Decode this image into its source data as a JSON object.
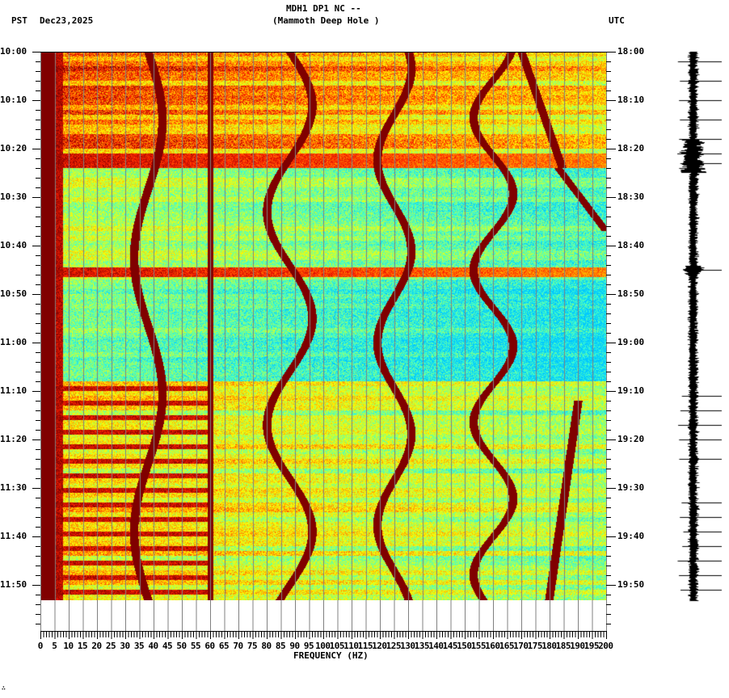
{
  "header": {
    "station_line": "MDH1 DP1 NC --",
    "site_line": "(Mammoth Deep Hole )",
    "left_timezone": "PST",
    "date": "Dec23,2025",
    "right_timezone": "UTC"
  },
  "footer": {
    "mark": "∴"
  },
  "chart_data": {
    "type": "heatmap",
    "title": "MDH1 DP1 NC -- (Mammoth Deep Hole ) spectrogram",
    "xlabel": "FREQUENCY (HZ)",
    "ylabel_left": "PST",
    "ylabel_right": "UTC",
    "xlim": [
      0,
      200
    ],
    "x_ticks": [
      0,
      5,
      10,
      15,
      20,
      25,
      30,
      35,
      40,
      45,
      50,
      55,
      60,
      65,
      70,
      75,
      80,
      85,
      90,
      95,
      100,
      105,
      110,
      115,
      120,
      125,
      130,
      135,
      140,
      145,
      150,
      155,
      160,
      165,
      170,
      175,
      180,
      185,
      190,
      195,
      200
    ],
    "y_ticks_left": [
      "10:00",
      "10:10",
      "10:20",
      "10:30",
      "10:40",
      "10:50",
      "11:00",
      "11:10",
      "11:20",
      "11:30",
      "11:40",
      "11:50"
    ],
    "y_ticks_right": [
      "18:00",
      "18:10",
      "18:20",
      "18:30",
      "18:40",
      "18:50",
      "19:00",
      "19:10",
      "19:20",
      "19:30",
      "19:40",
      "19:50"
    ],
    "time_range_pst": [
      "10:00",
      "11:53"
    ],
    "grid": "vertical lines every 5 Hz",
    "colormap": [
      "#00c8ff",
      "#40ffd0",
      "#a0ff60",
      "#ffff00",
      "#ffa000",
      "#ff2000",
      "#800000"
    ],
    "features": [
      {
        "name": "low-frequency noise band",
        "freq_hz": [
          0,
          5
        ],
        "intensity": "saturated"
      },
      {
        "name": "60 Hz power line",
        "freq_hz": 60,
        "intensity": "saturated"
      },
      {
        "name": "broadband event",
        "time_pst": "10:21-10:24",
        "freq_hz": [
          0,
          200
        ]
      },
      {
        "name": "broadband event",
        "time_pst": "10:45",
        "freq_hz": [
          0,
          200
        ]
      },
      {
        "name": "high-noise period",
        "time_pst": "10:00-10:24",
        "freq_hz": [
          0,
          200
        ]
      },
      {
        "name": "high-noise period",
        "time_pst": "11:08-11:53",
        "freq_hz": [
          0,
          110
        ]
      },
      {
        "name": "drifting tones",
        "time_pst": "10:25-11:53",
        "freq_hz": [
          20,
          200
        ]
      }
    ],
    "seismogram": {
      "description": "vertical waveform trace aligned with time axis",
      "notable_spikes_utc": [
        "18:02",
        "18:06",
        "18:10",
        "18:14",
        "18:18",
        "18:21",
        "18:23",
        "18:45",
        "19:11",
        "19:14",
        "19:17",
        "19:20",
        "19:24",
        "19:33",
        "19:36",
        "19:39",
        "19:42",
        "19:45",
        "19:48",
        "19:51"
      ]
    }
  }
}
